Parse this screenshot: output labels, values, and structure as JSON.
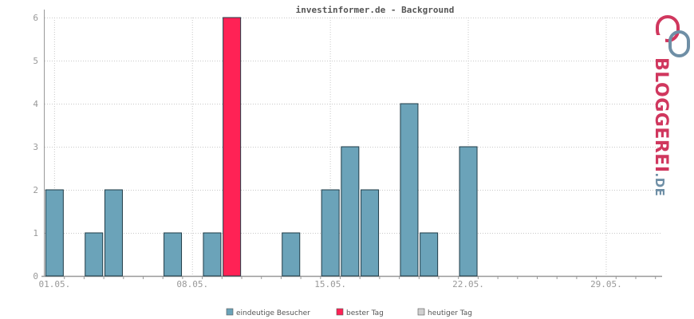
{
  "chart_data": {
    "type": "bar",
    "title": "investinformer.de - Background",
    "x": [
      "01.05.",
      "02.05.",
      "03.05.",
      "04.05.",
      "05.05.",
      "06.05.",
      "07.05.",
      "08.05.",
      "09.05.",
      "10.05.",
      "11.05.",
      "12.05.",
      "13.05.",
      "14.05.",
      "15.05.",
      "16.05.",
      "17.05.",
      "18.05.",
      "19.05.",
      "20.05.",
      "21.05.",
      "22.05.",
      "23.05.",
      "24.05.",
      "25.05.",
      "26.05.",
      "27.05.",
      "28.05.",
      "29.05.",
      "30.05.",
      "31.05."
    ],
    "x_tick_labels": [
      "01.05.",
      "08.05.",
      "15.05.",
      "22.05.",
      "29.05."
    ],
    "series": [
      {
        "name": "eindeutige Besucher",
        "color": "#6ba3b9",
        "values": [
          2,
          0,
          1,
          2,
          0,
          0,
          1,
          0,
          1,
          6,
          0,
          0,
          1,
          0,
          2,
          3,
          2,
          0,
          4,
          1,
          0,
          3,
          0,
          0,
          0,
          0,
          0,
          0,
          0,
          0,
          0
        ]
      },
      {
        "name": "bester Tag",
        "color": "#ff2255",
        "values": [
          0,
          0,
          0,
          0,
          0,
          0,
          0,
          0,
          0,
          6,
          0,
          0,
          0,
          0,
          0,
          0,
          0,
          0,
          0,
          0,
          0,
          0,
          0,
          0,
          0,
          0,
          0,
          0,
          0,
          0,
          0
        ]
      },
      {
        "name": "heutiger Tag",
        "color": "#d0d0d0",
        "values": [
          0,
          0,
          0,
          0,
          0,
          0,
          0,
          0,
          0,
          0,
          0,
          0,
          0,
          0,
          0,
          0,
          0,
          0,
          0,
          0,
          0,
          0,
          0,
          0,
          0,
          0,
          0,
          0,
          0,
          0,
          0
        ]
      }
    ],
    "best_day_index": 9,
    "ylim": [
      0,
      6
    ],
    "y_ticks": [
      "0",
      "1",
      "2",
      "3",
      "4",
      "5",
      "6"
    ],
    "grid": true,
    "legend_position": "bottom"
  },
  "logo": {
    "text_main": "BLOGGEREI",
    "text_suffix": ".DE",
    "color_main": "#d0375e",
    "color_secondary": "#6f8fa6"
  }
}
